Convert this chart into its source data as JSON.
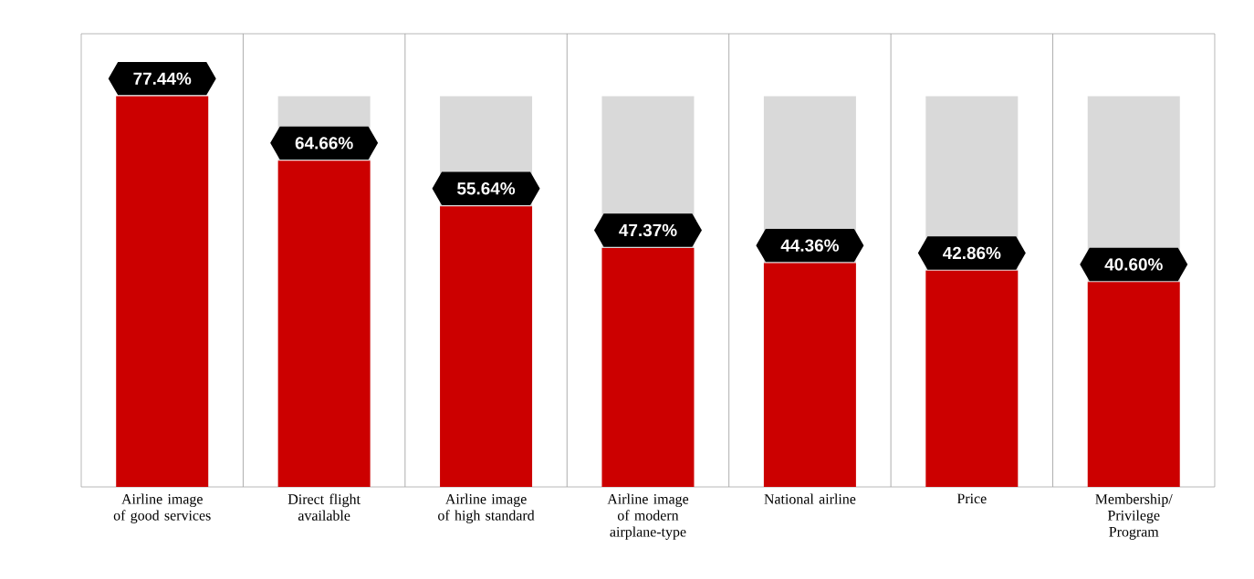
{
  "chart_data": {
    "type": "bar",
    "stacked": true,
    "categories": [
      "Airline image of good services",
      "Direct flight available",
      "Airline image of high standard",
      "Airline image of modern airplane-type",
      "National airline",
      "Price",
      "Membership/ Privilege Program"
    ],
    "series": [
      {
        "color": "#cc0000",
        "values": [
          77.44,
          64.66,
          55.64,
          47.37,
          44.36,
          42.86,
          40.6
        ],
        "value_labels": [
          "77.44%",
          "64.66%",
          "55.64%",
          "47.37%",
          "44.36%",
          "42.86%",
          "40.60%"
        ]
      },
      {
        "color": "#d9d9d9",
        "values": [
          0,
          12.78,
          21.8,
          30.07,
          33.08,
          34.58,
          36.84
        ]
      }
    ],
    "grid": "x"
  }
}
